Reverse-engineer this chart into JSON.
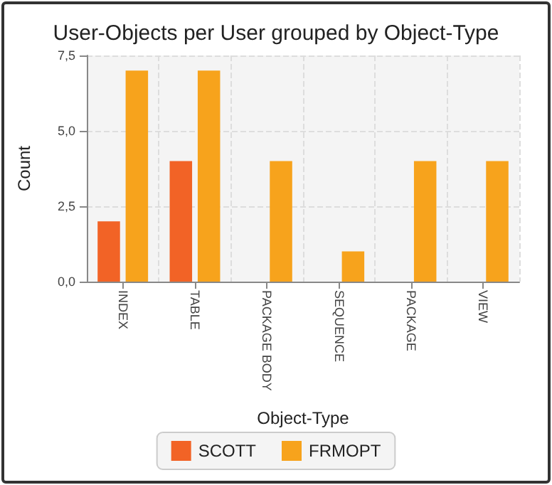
{
  "chart_data": {
    "type": "bar",
    "title": "User-Objects per User grouped by Object-Type",
    "xlabel": "Object-Type",
    "ylabel": "Count",
    "categories": [
      "INDEX",
      "TABLE",
      "PACKAGE BODY",
      "SEQUENCE",
      "PACKAGE",
      "VIEW"
    ],
    "series": [
      {
        "name": "SCOTT",
        "color": "#f26326",
        "values": [
          2,
          4,
          null,
          null,
          null,
          null
        ]
      },
      {
        "name": "FRMOPT",
        "color": "#f7a31c",
        "values": [
          7,
          7,
          4,
          1,
          4,
          4
        ]
      }
    ],
    "ylim": [
      0,
      7.5
    ],
    "yticks": [
      {
        "value": 0,
        "label": "0,0"
      },
      {
        "value": 2.5,
        "label": "2,5"
      },
      {
        "value": 5,
        "label": "5,0"
      },
      {
        "value": 7.5,
        "label": "7,5"
      }
    ],
    "grid": true,
    "legend": "bottom"
  }
}
